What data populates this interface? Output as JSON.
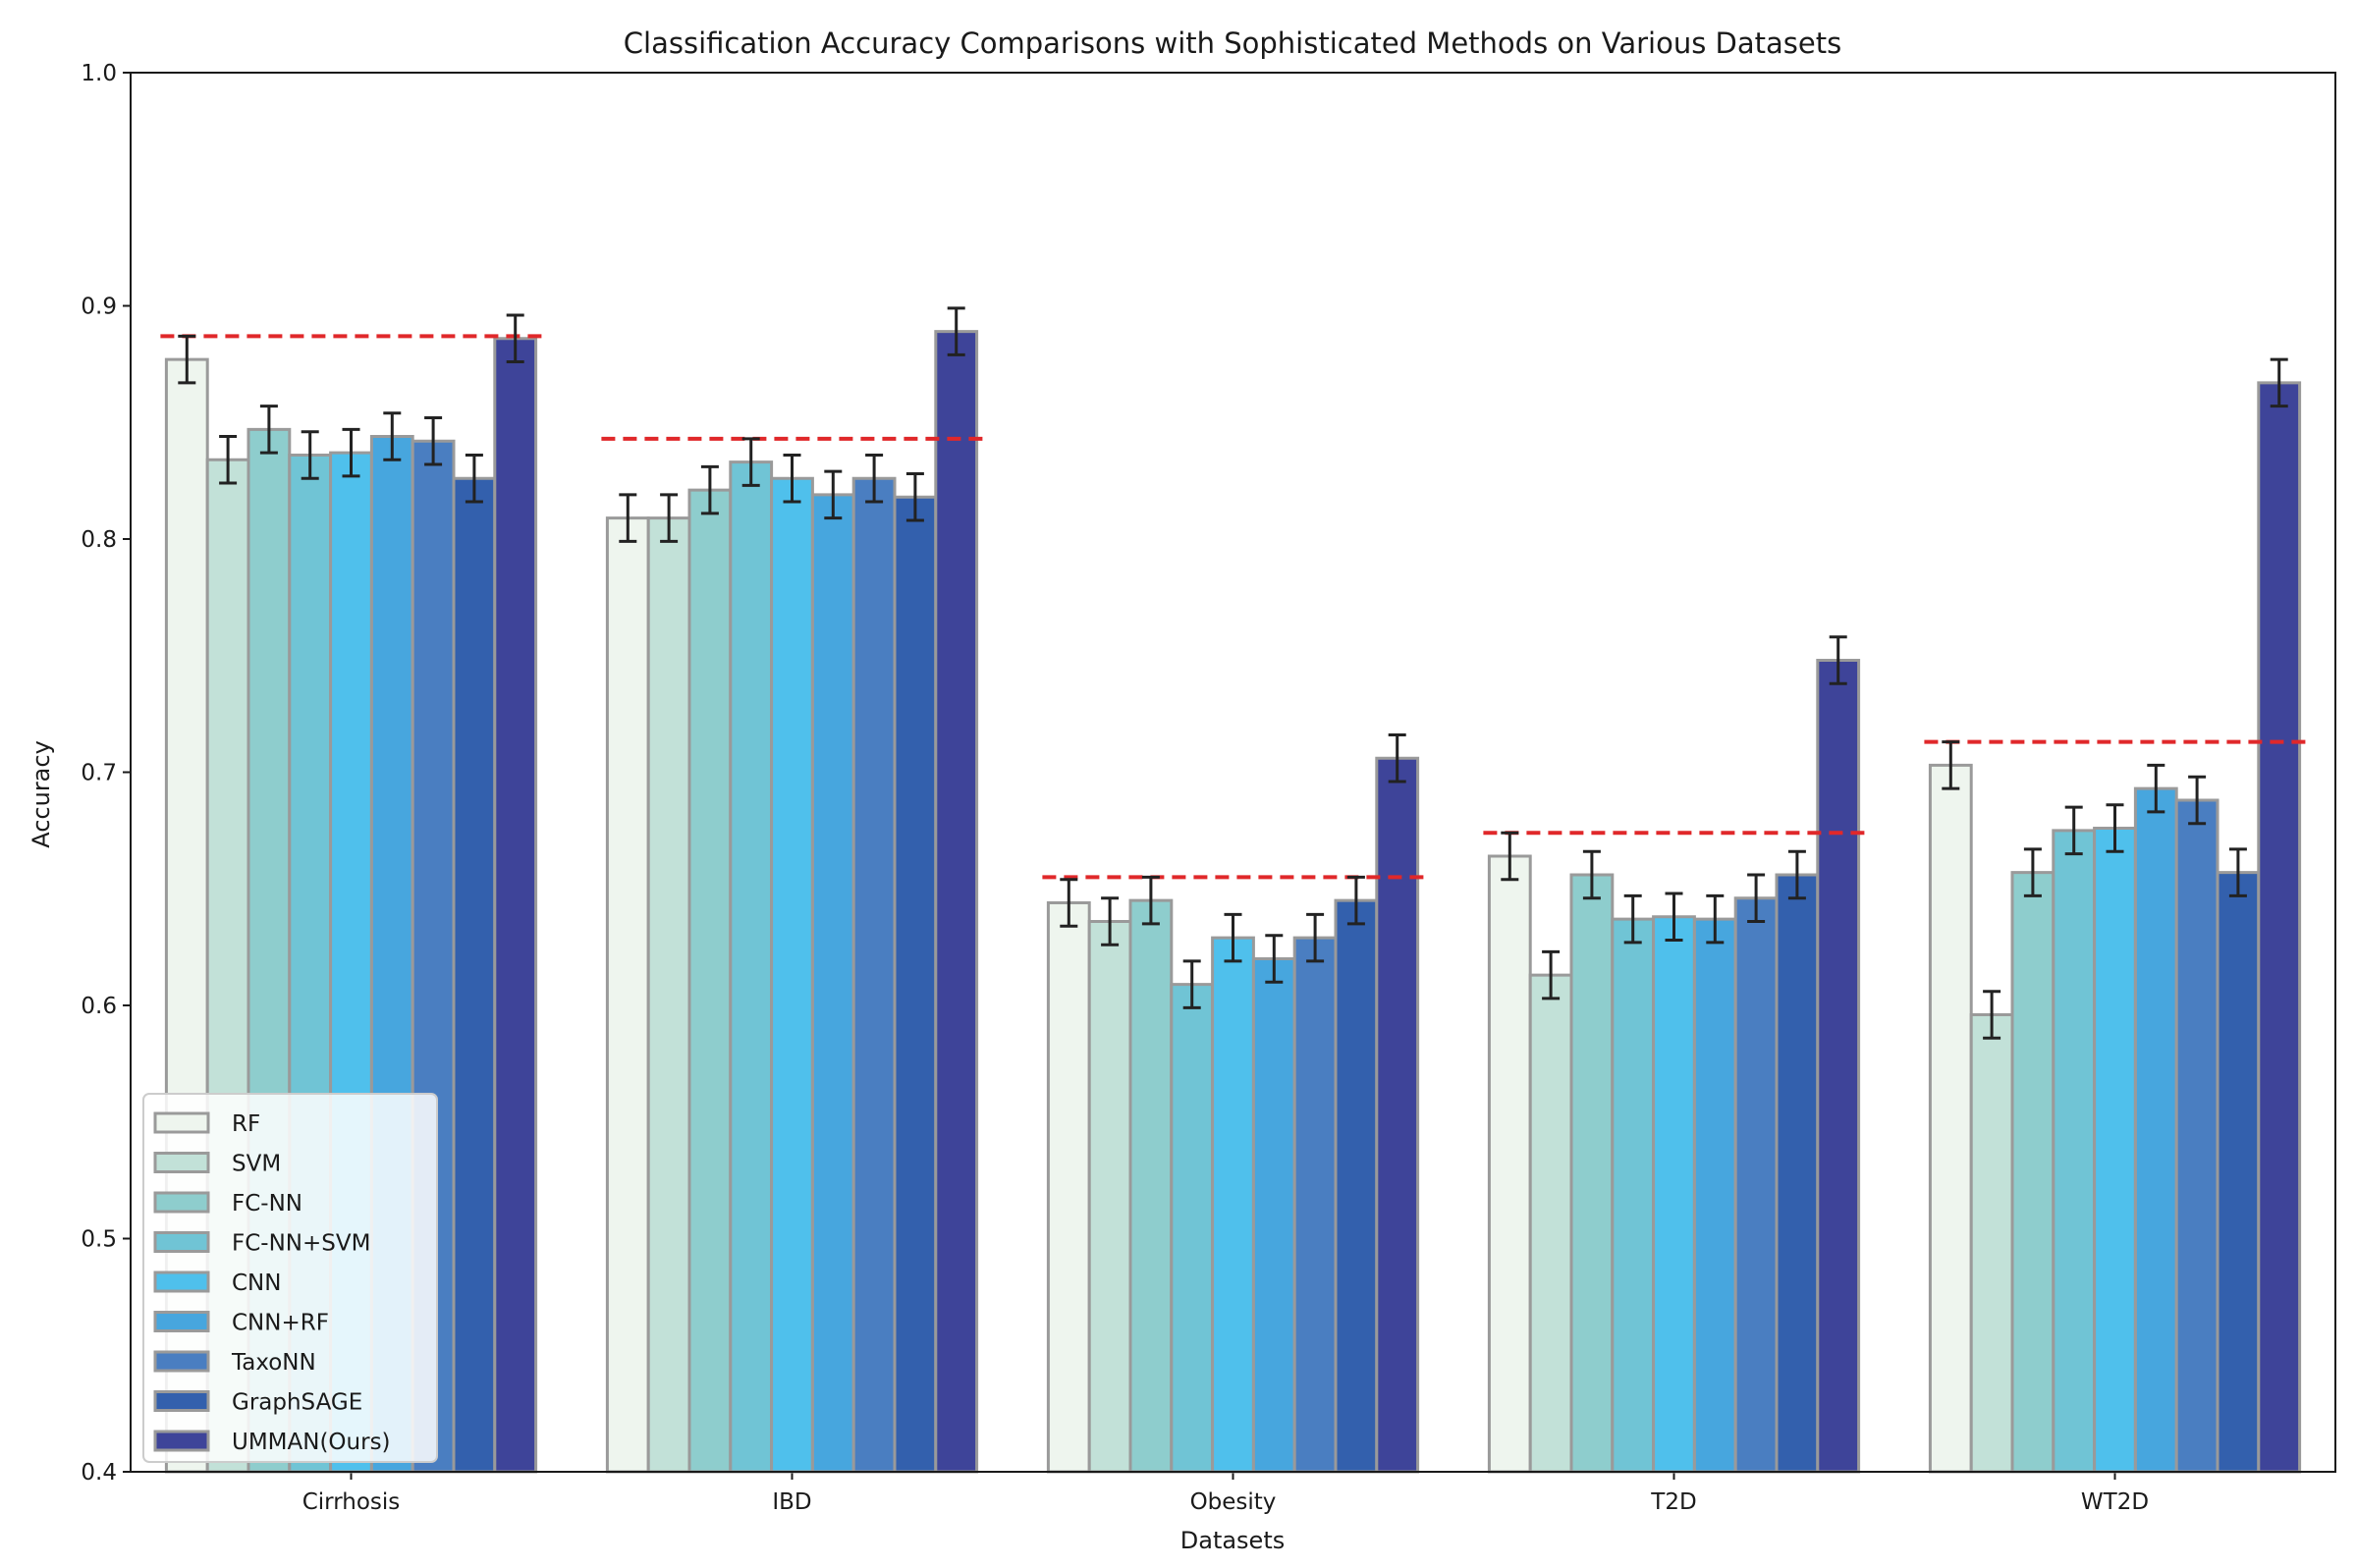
{
  "chart_data": {
    "type": "bar",
    "title": "Classification Accuracy Comparisons with Sophisticated Methods on Various Datasets",
    "xlabel": "Datasets",
    "ylabel": "Accuracy",
    "ylim": [
      0.4,
      1.0
    ],
    "yticks": [
      "0.4",
      "0.5",
      "0.6",
      "0.7",
      "0.8",
      "0.9",
      "1.0"
    ],
    "categories": [
      "Cirrhosis",
      "IBD",
      "Obesity",
      "T2D",
      "WT2D"
    ],
    "legend_position": "lower-left",
    "grid": false,
    "reference_line_color": "#e0282a",
    "series": [
      {
        "name": "RF",
        "color": "#eef5ee",
        "edge": "#9a9a9a",
        "values": [
          0.877,
          0.809,
          0.644,
          0.664,
          0.703
        ],
        "errors": [
          0.01,
          0.01,
          0.01,
          0.01,
          0.01
        ]
      },
      {
        "name": "SVM",
        "color": "#c2e1d8",
        "edge": "#9a9a9a",
        "values": [
          0.834,
          0.809,
          0.636,
          0.613,
          0.596
        ],
        "errors": [
          0.01,
          0.01,
          0.01,
          0.01,
          0.01
        ]
      },
      {
        "name": "FC-NN",
        "color": "#8ecdcd",
        "edge": "#9a9a9a",
        "values": [
          0.847,
          0.821,
          0.645,
          0.656,
          0.657
        ],
        "errors": [
          0.01,
          0.01,
          0.01,
          0.01,
          0.01
        ]
      },
      {
        "name": "FC-NN+SVM",
        "color": "#70c4d5",
        "edge": "#9a9a9a",
        "values": [
          0.836,
          0.833,
          0.609,
          0.637,
          0.675
        ],
        "errors": [
          0.01,
          0.01,
          0.01,
          0.01,
          0.01
        ]
      },
      {
        "name": "CNN",
        "color": "#4fc0ec",
        "edge": "#9a9a9a",
        "values": [
          0.837,
          0.826,
          0.629,
          0.638,
          0.676
        ],
        "errors": [
          0.01,
          0.01,
          0.01,
          0.01,
          0.01
        ]
      },
      {
        "name": "CNN+RF",
        "color": "#47a6de",
        "edge": "#9a9a9a",
        "values": [
          0.844,
          0.819,
          0.62,
          0.637,
          0.693
        ],
        "errors": [
          0.01,
          0.01,
          0.01,
          0.01,
          0.01
        ]
      },
      {
        "name": "TaxoNN",
        "color": "#4a7ec1",
        "edge": "#9a9a9a",
        "values": [
          0.842,
          0.826,
          0.629,
          0.646,
          0.688
        ],
        "errors": [
          0.01,
          0.01,
          0.01,
          0.01,
          0.01
        ]
      },
      {
        "name": "GraphSAGE",
        "color": "#3360ad",
        "edge": "#9a9a9a",
        "values": [
          0.826,
          0.818,
          0.645,
          0.656,
          0.657
        ],
        "errors": [
          0.01,
          0.01,
          0.01,
          0.01,
          0.01
        ]
      },
      {
        "name": "UMMAN(Ours)",
        "color": "#3e4499",
        "edge": "#9a9a9a",
        "values": [
          0.886,
          0.889,
          0.706,
          0.748,
          0.867
        ],
        "errors": [
          0.01,
          0.01,
          0.01,
          0.01,
          0.01
        ]
      }
    ],
    "reference_lines": [
      0.887,
      0.843,
      0.655,
      0.674,
      0.713
    ]
  }
}
